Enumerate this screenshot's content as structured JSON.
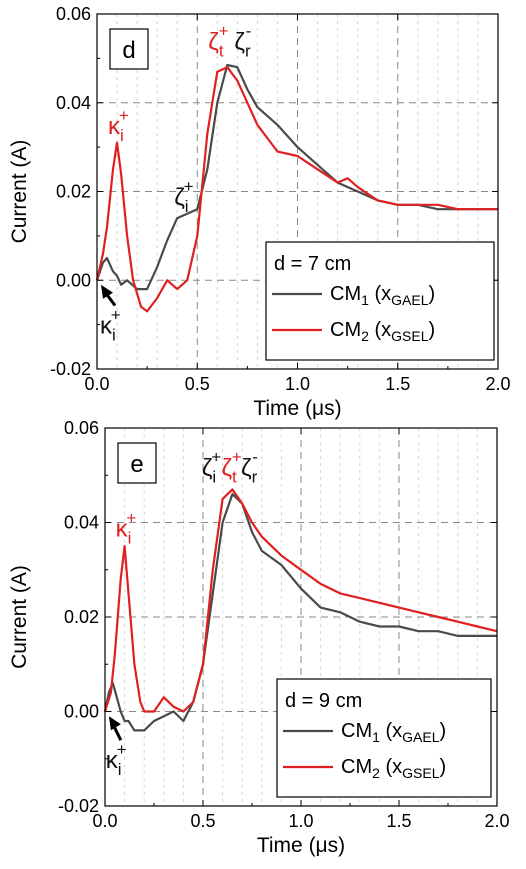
{
  "colors": {
    "cm1": "#4a4a4a",
    "cm2": "#e02020",
    "annot_black": "#111111",
    "annot_red": "#e02020"
  },
  "chart_data": [
    {
      "type": "line",
      "panel_label": "d",
      "xlabel": "Time (μs)",
      "ylabel": "Current (A)",
      "xlim": [
        0.0,
        2.0
      ],
      "ylim": [
        -0.02,
        0.06
      ],
      "xticks": [
        "0.0",
        "0.5",
        "1.0",
        "1.5",
        "2.0"
      ],
      "yticks": [
        "-0.02",
        "0.00",
        "0.02",
        "0.04",
        "0.06"
      ],
      "grid": "dashed",
      "legend": {
        "title": "d = 7 cm",
        "items": [
          {
            "base": "CM",
            "sub": "1",
            "open": " (x",
            "vsub": "GAEL",
            "close": ")"
          },
          {
            "base": "CM",
            "sub": "2",
            "open": " (x",
            "vsub": "GSEL",
            "close": ")"
          }
        ]
      },
      "annotations": [
        {
          "sym": "κ",
          "sub": "i",
          "sup": "+",
          "color": "red",
          "at": [
            0.1,
            0.033
          ]
        },
        {
          "sym": "κ",
          "sub": "i",
          "sup": "+",
          "color": "black",
          "at": [
            0.06,
            -0.012
          ]
        },
        {
          "sym": "ζ",
          "sub": "i",
          "sup": "+",
          "color": "black",
          "at": [
            0.43,
            0.017
          ]
        },
        {
          "sym": "ζ",
          "sub": "t",
          "sup": "+",
          "color": "red",
          "at": [
            0.6,
            0.052
          ]
        },
        {
          "sym": "ζ",
          "sub": "r",
          "sup": "-",
          "color": "black",
          "at": [
            0.73,
            0.052
          ]
        }
      ],
      "series": [
        {
          "name": "CM1 (xGAEL)",
          "color_key": "cm1",
          "x": [
            0.0,
            0.03,
            0.05,
            0.08,
            0.1,
            0.12,
            0.15,
            0.2,
            0.25,
            0.3,
            0.35,
            0.4,
            0.45,
            0.5,
            0.55,
            0.6,
            0.65,
            0.7,
            0.75,
            0.8,
            0.9,
            1.0,
            1.1,
            1.2,
            1.3,
            1.4,
            1.5,
            1.6,
            1.7,
            1.8,
            1.9,
            2.0
          ],
          "y": [
            0.0,
            0.004,
            0.005,
            0.002,
            0.001,
            -0.001,
            0.0,
            -0.002,
            -0.002,
            0.003,
            0.009,
            0.014,
            0.015,
            0.016,
            0.025,
            0.04,
            0.0485,
            0.048,
            0.043,
            0.039,
            0.035,
            0.03,
            0.026,
            0.022,
            0.02,
            0.018,
            0.017,
            0.017,
            0.016,
            0.016,
            0.016,
            0.016
          ]
        },
        {
          "name": "CM2 (xGSEL)",
          "color_key": "cm2",
          "x": [
            0.0,
            0.03,
            0.05,
            0.08,
            0.1,
            0.12,
            0.15,
            0.18,
            0.22,
            0.25,
            0.3,
            0.35,
            0.4,
            0.45,
            0.5,
            0.55,
            0.6,
            0.65,
            0.7,
            0.75,
            0.8,
            0.9,
            1.0,
            1.1,
            1.2,
            1.25,
            1.3,
            1.4,
            1.5,
            1.6,
            1.7,
            1.8,
            1.9,
            2.0
          ],
          "y": [
            0.0,
            0.006,
            0.012,
            0.025,
            0.031,
            0.024,
            0.01,
            0.0,
            -0.006,
            -0.007,
            -0.004,
            0.0,
            -0.002,
            0.0,
            0.01,
            0.033,
            0.047,
            0.048,
            0.045,
            0.04,
            0.035,
            0.029,
            0.028,
            0.025,
            0.022,
            0.023,
            0.021,
            0.018,
            0.017,
            0.017,
            0.017,
            0.016,
            0.016,
            0.016
          ]
        }
      ]
    },
    {
      "type": "line",
      "panel_label": "e",
      "xlabel": "Time (μs)",
      "ylabel": "Current (A)",
      "xlim": [
        0.0,
        2.0
      ],
      "ylim": [
        -0.02,
        0.06
      ],
      "xticks": [
        "0.0",
        "0.5",
        "1.0",
        "1.5",
        "2.0"
      ],
      "yticks": [
        "-0.02",
        "0.00",
        "0.02",
        "0.04",
        "0.06"
      ],
      "grid": "dashed",
      "legend": {
        "title": "d = 9 cm",
        "items": [
          {
            "base": "CM",
            "sub": "1",
            "open": " (x",
            "vsub": "GAEL",
            "close": ")"
          },
          {
            "base": "CM",
            "sub": "2",
            "open": " (x",
            "vsub": "GSEL",
            "close": ")"
          }
        ]
      },
      "annotations": [
        {
          "sym": "κ",
          "sub": "i",
          "sup": "+",
          "color": "red",
          "at": [
            0.1,
            0.037
          ]
        },
        {
          "sym": "κ",
          "sub": "i",
          "sup": "+",
          "color": "black",
          "at": [
            0.05,
            -0.012
          ]
        },
        {
          "sym": "ζ",
          "sub": "i",
          "sup": "+",
          "color": "black",
          "at": [
            0.54,
            0.05
          ]
        },
        {
          "sym": "ζ",
          "sub": "t",
          "sup": "+",
          "color": "red",
          "at": [
            0.64,
            0.05
          ]
        },
        {
          "sym": "ζ",
          "sub": "r",
          "sup": "-",
          "color": "black",
          "at": [
            0.74,
            0.05
          ]
        }
      ],
      "series": [
        {
          "name": "CM1 (xGAEL)",
          "color_key": "cm1",
          "x": [
            0.0,
            0.02,
            0.04,
            0.06,
            0.08,
            0.1,
            0.12,
            0.15,
            0.2,
            0.25,
            0.3,
            0.35,
            0.4,
            0.45,
            0.5,
            0.55,
            0.6,
            0.65,
            0.7,
            0.75,
            0.8,
            0.9,
            1.0,
            1.1,
            1.2,
            1.3,
            1.4,
            1.5,
            1.6,
            1.7,
            1.8,
            1.9,
            2.0
          ],
          "y": [
            0.0,
            0.004,
            0.006,
            0.003,
            0.0,
            -0.002,
            -0.002,
            -0.004,
            -0.004,
            -0.002,
            -0.001,
            0.0,
            -0.002,
            0.002,
            0.01,
            0.025,
            0.04,
            0.046,
            0.044,
            0.038,
            0.034,
            0.031,
            0.026,
            0.022,
            0.021,
            0.019,
            0.018,
            0.018,
            0.017,
            0.017,
            0.016,
            0.016,
            0.016
          ]
        },
        {
          "name": "CM2 (xGSEL)",
          "color_key": "cm2",
          "x": [
            0.0,
            0.03,
            0.05,
            0.08,
            0.1,
            0.12,
            0.15,
            0.18,
            0.2,
            0.25,
            0.3,
            0.35,
            0.4,
            0.45,
            0.5,
            0.55,
            0.6,
            0.65,
            0.7,
            0.75,
            0.8,
            0.9,
            1.0,
            1.1,
            1.2,
            1.3,
            1.4,
            1.5,
            1.6,
            1.7,
            1.8,
            1.9,
            2.0
          ],
          "y": [
            0.0,
            0.004,
            0.012,
            0.028,
            0.035,
            0.025,
            0.01,
            0.002,
            0.0,
            0.0,
            0.003,
            0.001,
            0.0,
            0.002,
            0.01,
            0.03,
            0.045,
            0.047,
            0.044,
            0.04,
            0.037,
            0.033,
            0.03,
            0.027,
            0.025,
            0.024,
            0.023,
            0.022,
            0.021,
            0.02,
            0.019,
            0.018,
            0.017
          ]
        }
      ]
    }
  ]
}
